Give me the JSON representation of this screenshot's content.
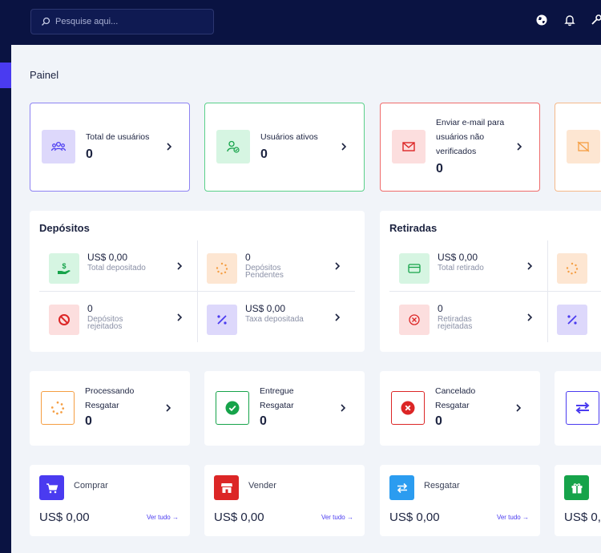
{
  "search": {
    "placeholder": "Pesquise aqui..."
  },
  "page_title": "Painel",
  "stats": [
    {
      "label": "Total de usuários",
      "value": "0"
    },
    {
      "label": "Usuários ativos",
      "value": "0"
    },
    {
      "label": "Enviar e-mail para usuários não verificados",
      "value": "0"
    }
  ],
  "deposits": {
    "title": "Depósitos",
    "items": [
      {
        "value": "US$ 0,00",
        "label": "Total depositado"
      },
      {
        "value": "0",
        "label": "Depósitos Pendentes"
      },
      {
        "value": "0",
        "label": "Depósitos rejeitados"
      },
      {
        "value": "US$ 0,00",
        "label": "Taxa depositada"
      }
    ]
  },
  "withdrawals": {
    "title": "Retiradas",
    "items": [
      {
        "value": "US$ 0,00",
        "label": "Total retirado"
      },
      {
        "value": "0",
        "label": "Retiradas rejeitadas"
      }
    ]
  },
  "processing": [
    {
      "line1": "Processando",
      "line2": "Resgatar",
      "value": "0"
    },
    {
      "line1": "Entregue",
      "line2": "Resgatar",
      "value": "0"
    },
    {
      "line1": "Cancelado",
      "line2": "Resgatar",
      "value": "0"
    }
  ],
  "actions": [
    {
      "label": "Comprar",
      "amount": "US$ 0,00",
      "link": "Ver tudo"
    },
    {
      "label": "Vender",
      "amount": "US$ 0,00",
      "link": "Ver tudo"
    },
    {
      "label": "Resgatar",
      "amount": "US$ 0,00",
      "link": "Ver tudo"
    },
    {
      "label": "",
      "amount": "US$ 0,"
    }
  ],
  "colors": {
    "accent": "#4a3bf0",
    "sidebar": "#0a1342",
    "success": "#16a34a",
    "danger": "#dc2626",
    "warning": "#f59e42"
  }
}
